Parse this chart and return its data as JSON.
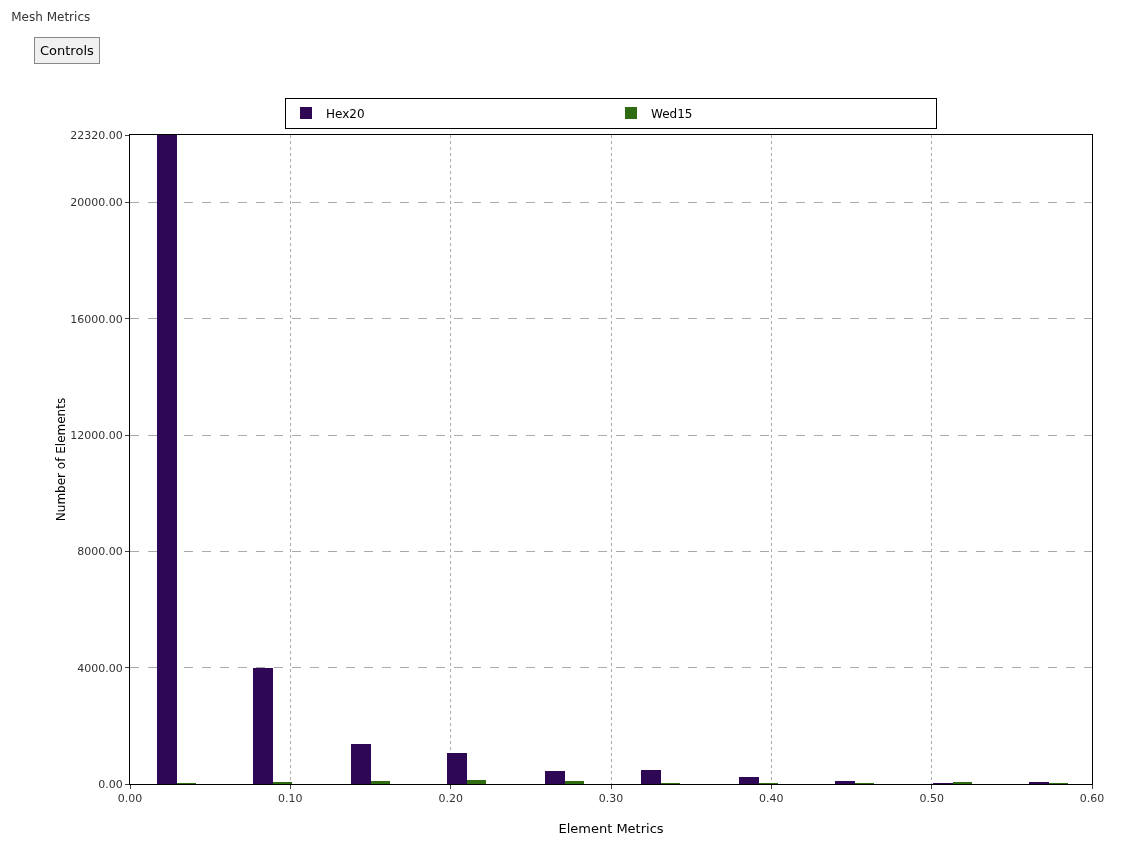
{
  "chart_data": {
    "type": "bar",
    "title": "Mesh Metrics",
    "xlabel": "Element Metrics",
    "ylabel": "Number of Elements",
    "annotations": [
      "Controls"
    ],
    "x": [
      0.029,
      0.089,
      0.15,
      0.21,
      0.271,
      0.331,
      0.392,
      0.452,
      0.513,
      0.573
    ],
    "series": [
      {
        "name": "Hex20",
        "color": "#2e0854",
        "values": [
          22320,
          3980,
          1380,
          1070,
          460,
          480,
          250,
          100,
          20,
          50
        ]
      },
      {
        "name": "Wed15",
        "color": "#2f6b10",
        "values": [
          20,
          80,
          100,
          130,
          90,
          20,
          20,
          20,
          60,
          20
        ]
      }
    ],
    "xlim": [
      0,
      0.6
    ],
    "xticks": [
      {
        "value": 0,
        "label": "0.00"
      },
      {
        "value": 0.1,
        "label": "0.10"
      },
      {
        "value": 0.2,
        "label": "0.20"
      },
      {
        "value": 0.3,
        "label": "0.30"
      },
      {
        "value": 0.4,
        "label": "0.40"
      },
      {
        "value": 0.5,
        "label": "0.50"
      },
      {
        "value": 0.6,
        "label": "0.60"
      }
    ],
    "ylim": [
      0,
      22320
    ],
    "yticks": [
      {
        "value": 0,
        "label": "0.00"
      },
      {
        "value": 4000,
        "label": "4000.00"
      },
      {
        "value": 8000,
        "label": "8000.00"
      },
      {
        "value": 12000,
        "label": "12000.00"
      },
      {
        "value": 16000,
        "label": "16000.00"
      },
      {
        "value": 20000,
        "label": "20000.00"
      },
      {
        "value": 22320,
        "label": "22320.00"
      }
    ],
    "grid": true,
    "legend": "top"
  }
}
